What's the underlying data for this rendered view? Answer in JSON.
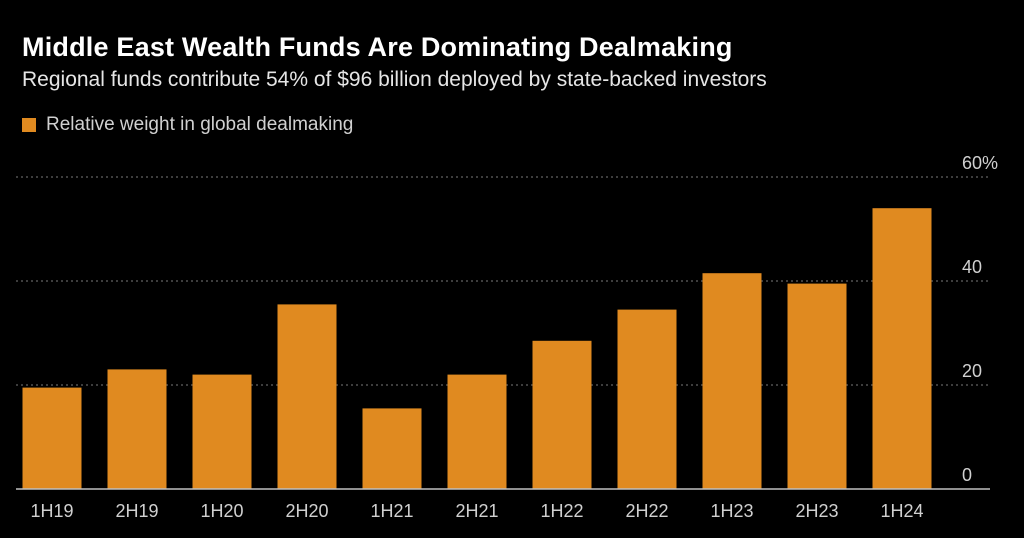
{
  "header": {
    "title": "Middle East Wealth Funds Are Dominating Dealmaking",
    "subtitle": "Regional funds contribute 54% of $96 billion deployed by state-backed investors"
  },
  "colors": {
    "background": "#000000",
    "bar": "#E08A20",
    "grid": "#7a7a7a",
    "axis": "#bfbfbf",
    "text": "#d0d0d0"
  },
  "chart_data": {
    "type": "bar",
    "title": "Middle East Wealth Funds Are Dominating Dealmaking",
    "subtitle": "Regional funds contribute 54% of $96 billion deployed by state-backed investors",
    "legend": [
      "Relative weight in global dealmaking"
    ],
    "legend_position": "top-left",
    "categories": [
      "1H19",
      "2H19",
      "1H20",
      "2H20",
      "1H21",
      "2H21",
      "1H22",
      "2H22",
      "1H23",
      "2H23",
      "1H24"
    ],
    "series": [
      {
        "name": "Relative weight in global dealmaking",
        "values": [
          19.5,
          23,
          22,
          35.5,
          15.5,
          22,
          28.5,
          34.5,
          41.5,
          39.5,
          54
        ]
      }
    ],
    "y_ticks": [
      0,
      20,
      40,
      60
    ],
    "y_tick_labels": [
      "0",
      "20",
      "40",
      "60%"
    ],
    "ylim": [
      0,
      60
    ],
    "y_axis_side": "right",
    "grid": true,
    "xlabel": "",
    "ylabel": ""
  }
}
